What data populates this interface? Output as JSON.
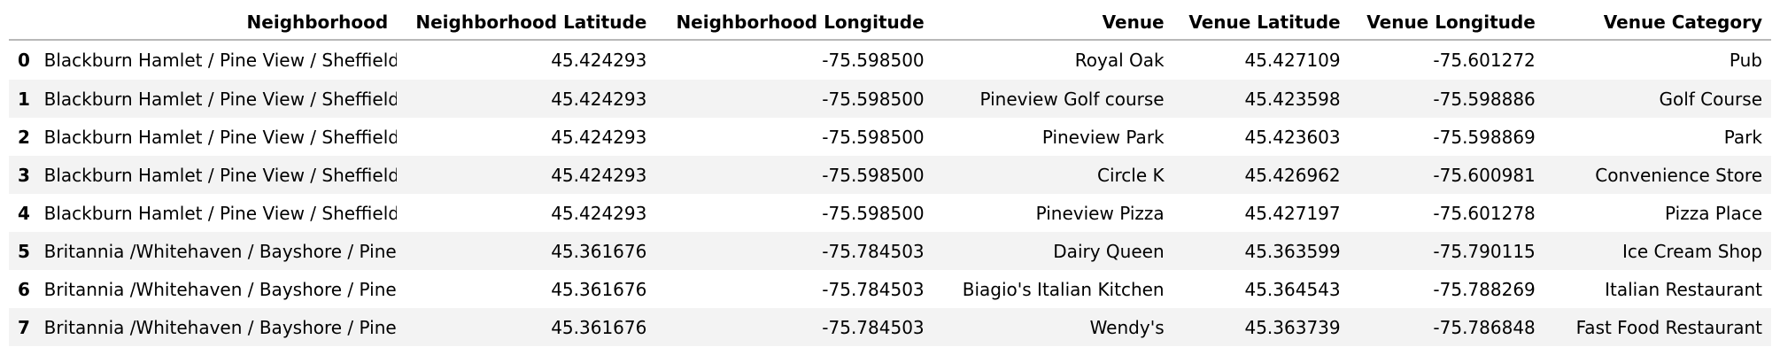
{
  "table": {
    "columns": [
      "",
      "Neighborhood",
      "Neighborhood Latitude",
      "Neighborhood Longitude",
      "Venue",
      "Venue Latitude",
      "Venue Longitude",
      "Venue Category"
    ],
    "rows": [
      {
        "index": "0",
        "neighborhood": "Blackburn Hamlet / Pine View / Sheffield Glen",
        "n_lat": "45.424293",
        "n_lon": "-75.598500",
        "venue": "Royal Oak",
        "v_lat": "45.427109",
        "v_lon": "-75.601272",
        "category": "Pub"
      },
      {
        "index": "1",
        "neighborhood": "Blackburn Hamlet / Pine View / Sheffield Glen",
        "n_lat": "45.424293",
        "n_lon": "-75.598500",
        "venue": "Pineview Golf course",
        "v_lat": "45.423598",
        "v_lon": "-75.598886",
        "category": "Golf Course"
      },
      {
        "index": "2",
        "neighborhood": "Blackburn Hamlet / Pine View / Sheffield Glen",
        "n_lat": "45.424293",
        "n_lon": "-75.598500",
        "venue": "Pineview Park",
        "v_lat": "45.423603",
        "v_lon": "-75.598869",
        "category": "Park"
      },
      {
        "index": "3",
        "neighborhood": "Blackburn Hamlet / Pine View / Sheffield Glen",
        "n_lat": "45.424293",
        "n_lon": "-75.598500",
        "venue": "Circle K",
        "v_lat": "45.426962",
        "v_lon": "-75.600981",
        "category": "Convenience Store"
      },
      {
        "index": "4",
        "neighborhood": "Blackburn Hamlet / Pine View / Sheffield Glen",
        "n_lat": "45.424293",
        "n_lon": "-75.598500",
        "venue": "Pineview Pizza",
        "v_lat": "45.427197",
        "v_lon": "-75.601278",
        "category": "Pizza Place"
      },
      {
        "index": "5",
        "neighborhood": "Britannia /Whitehaven / Bayshore / Pinecrest",
        "n_lat": "45.361676",
        "n_lon": "-75.784503",
        "venue": "Dairy Queen",
        "v_lat": "45.363599",
        "v_lon": "-75.790115",
        "category": "Ice Cream Shop"
      },
      {
        "index": "6",
        "neighborhood": "Britannia /Whitehaven / Bayshore / Pinecrest",
        "n_lat": "45.361676",
        "n_lon": "-75.784503",
        "venue": "Biagio's Italian Kitchen",
        "v_lat": "45.364543",
        "v_lon": "-75.788269",
        "category": "Italian Restaurant"
      },
      {
        "index": "7",
        "neighborhood": "Britannia /Whitehaven / Bayshore / Pinecrest",
        "n_lat": "45.361676",
        "n_lon": "-75.784503",
        "venue": "Wendy's",
        "v_lat": "45.363739",
        "v_lon": "-75.786848",
        "category": "Fast Food Restaurant"
      }
    ]
  }
}
